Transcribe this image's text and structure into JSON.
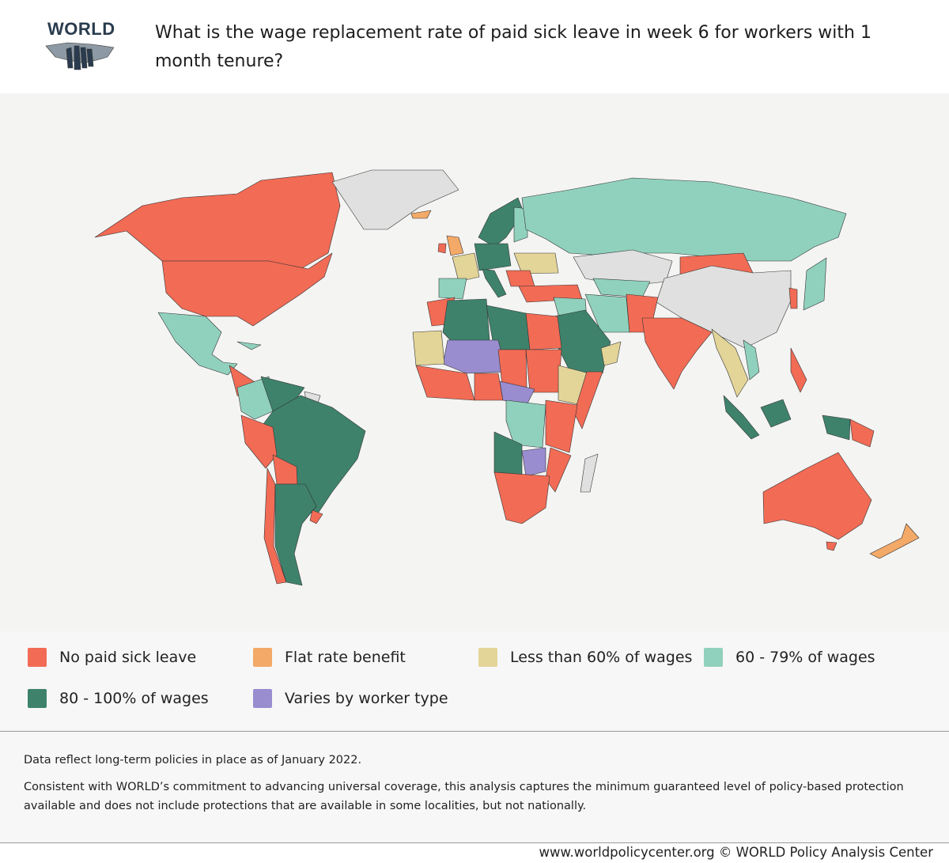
{
  "header": {
    "logo_text": "WORLD",
    "title": "What is the wage replacement rate of paid sick leave in week 6 for workers with 1 month tenure?"
  },
  "map": {
    "no_data_color": "#e0e0e0",
    "background_color": "#f4f4f3"
  },
  "legend": {
    "items": [
      {
        "label": "No paid sick leave",
        "color": "#f26b55"
      },
      {
        "label": "Flat rate benefit",
        "color": "#f3a967"
      },
      {
        "label": "Less than 60% of wages",
        "color": "#e3d598"
      },
      {
        "label": "60 - 79% of wages",
        "color": "#90d1bd"
      },
      {
        "label": "80 - 100% of wages",
        "color": "#3e826c"
      },
      {
        "label": "Varies by worker type",
        "color": "#998dd0"
      }
    ]
  },
  "notes": {
    "line1": "Data reflect long-term policies in place as of January 2022.",
    "line2": "Consistent with WORLD’s commitment to advancing universal coverage, this analysis captures the minimum guaranteed level of policy-based protection available and does not include protections that are available in some localities, but not nationally."
  },
  "footer": {
    "credit": "www.worldpolicycenter.org © WORLD Policy Analysis Center"
  }
}
